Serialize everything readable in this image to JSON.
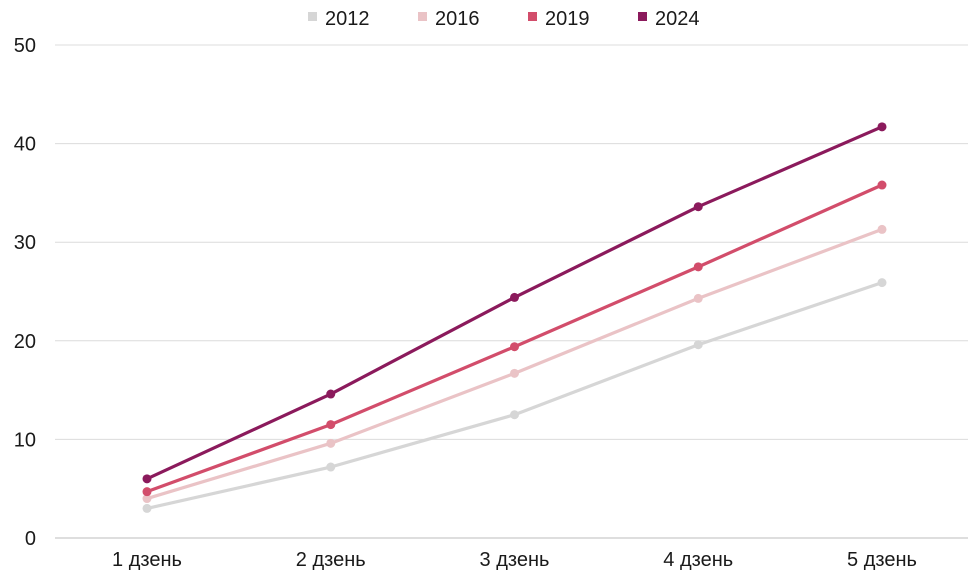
{
  "chart_data": {
    "type": "line",
    "title": "",
    "xlabel": "",
    "ylabel": "",
    "categories": [
      "1 дзень",
      "2 дзень",
      "3 дзень",
      "4 дзень",
      "5 дзень"
    ],
    "ylim": [
      0,
      50
    ],
    "yticks": [
      0,
      10,
      20,
      30,
      40,
      50
    ],
    "grid": "horizontal",
    "legend_position": "top",
    "series": [
      {
        "name": "2012",
        "color": "#d6d6d6",
        "values": [
          3.0,
          7.2,
          12.5,
          19.6,
          25.9
        ]
      },
      {
        "name": "2016",
        "color": "#eac3c6",
        "values": [
          4.0,
          9.6,
          16.7,
          24.3,
          31.3
        ]
      },
      {
        "name": "2019",
        "color": "#d24d6b",
        "values": [
          4.7,
          11.5,
          19.4,
          27.5,
          35.8
        ]
      },
      {
        "name": "2024",
        "color": "#8b1a5c",
        "values": [
          6.0,
          14.6,
          24.4,
          33.6,
          41.7
        ]
      }
    ]
  }
}
